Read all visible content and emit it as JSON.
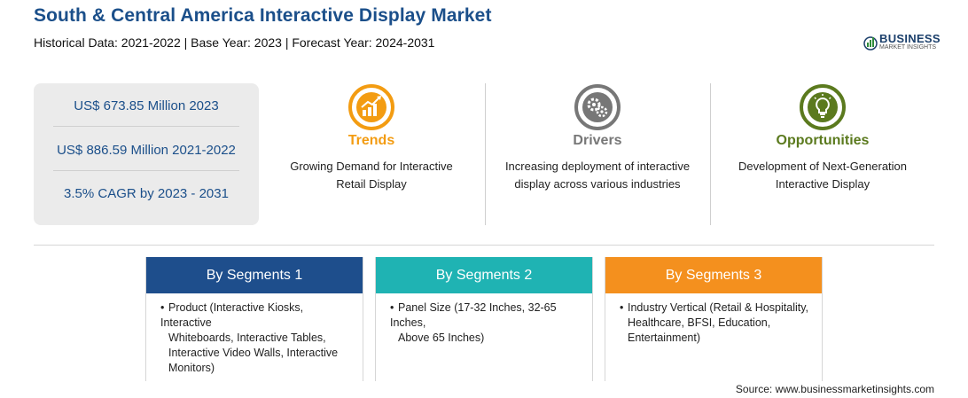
{
  "header": {
    "title": "South & Central America Interactive Display Market",
    "subtitle": "Historical Data: 2021-2022 | Base Year: 2023 | Forecast Year: 2024-2031"
  },
  "logo": {
    "line1": "BUSINESS",
    "line2": "MARKET INSIGHTS",
    "color": "#1b3f6b"
  },
  "stats": [
    "US$ 673.85 Million 2023",
    "US$ 886.59 Million 2021-2022",
    "3.5% CAGR by 2023 - 2031"
  ],
  "columns": [
    {
      "icon": "trend-chart-icon",
      "heading": "Trends",
      "color": "#f39c12",
      "desc_lines": [
        "Growing Demand for Interactive",
        "Retail Display"
      ]
    },
    {
      "icon": "gears-icon",
      "heading": "Drivers",
      "color": "#777777",
      "desc_lines": [
        "Increasing deployment of interactive",
        "display across various industries"
      ]
    },
    {
      "icon": "lightbulb-icon",
      "heading": "Opportunities",
      "color": "#5b7a1e",
      "desc_lines": [
        "Development of Next-Generation",
        "Interactive Display"
      ]
    }
  ],
  "segments": [
    {
      "title": "By Segments 1",
      "color": "#1e4e8c",
      "bullet": "•",
      "lines": [
        "Product (Interactive Kiosks, Interactive",
        "Whiteboards, Interactive Tables,",
        "Interactive Video Walls, Interactive",
        "Monitors)"
      ]
    },
    {
      "title": "By Segments 2",
      "color": "#1fb3b3",
      "bullet": "•",
      "lines": [
        "Panel Size (17-32 Inches, 32-65 Inches,",
        "Above 65 Inches)"
      ]
    },
    {
      "title": "By Segments 3",
      "color": "#f4901e",
      "bullet": "•",
      "lines": [
        "Industry Vertical (Retail & Hospitality,",
        "Healthcare, BFSI, Education,",
        "Entertainment)"
      ]
    }
  ],
  "source": "Source: www.businessmarketinsights.com"
}
